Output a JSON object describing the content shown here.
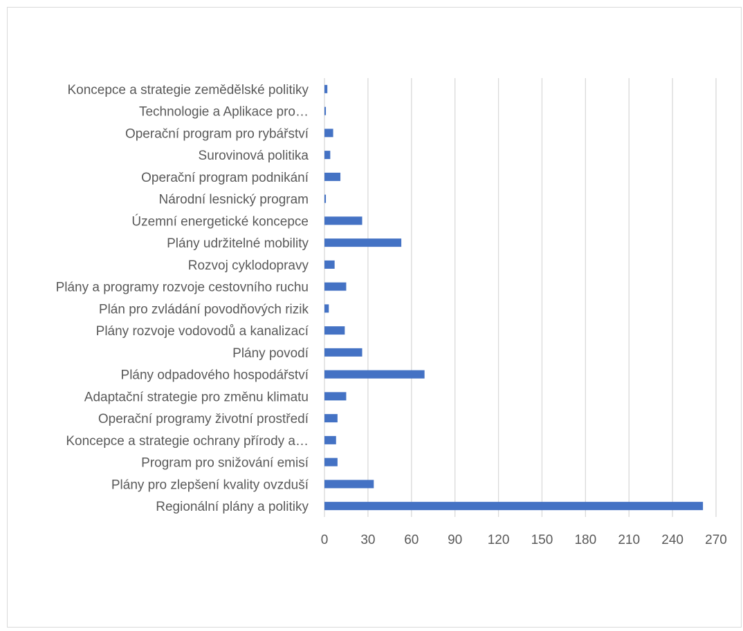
{
  "chart_data": {
    "type": "bar",
    "orientation": "horizontal",
    "categories": [
      "Koncepce a strategie zemědělské politiky",
      "Technologie a Aplikace pro…",
      "Operační program pro rybářství",
      "Surovinová politika",
      "Operační program podnikání",
      "Národní lesnický program",
      "Územní energetické koncepce",
      "Plány udržitelné mobility",
      "Rozvoj cyklodopravy",
      "Plány a programy rozvoje cestovního ruchu",
      "Plán pro zvládání povodňových rizik",
      "Plány rozvoje vodovodů a kanalizací",
      "Plány povodí",
      "Plány odpadového hospodářství",
      "Adaptační strategie pro změnu klimatu",
      "Operační programy životní prostředí",
      "Koncepce a strategie ochrany přírody a…",
      "Program pro snižování emisí",
      "Plány pro zlepšení kvality ovzduší",
      "Regionální plány a politiky"
    ],
    "values": [
      2,
      1,
      6,
      4,
      11,
      1,
      26,
      53,
      7,
      15,
      3,
      14,
      26,
      69,
      15,
      9,
      8,
      9,
      34,
      261
    ],
    "xlim": [
      0,
      270
    ],
    "xticks": [
      "0",
      "30",
      "60",
      "90",
      "120",
      "150",
      "180",
      "210",
      "240",
      "270"
    ],
    "grid": true,
    "bar_color": "#4472c4",
    "grid_color": "#d9d9d9"
  }
}
